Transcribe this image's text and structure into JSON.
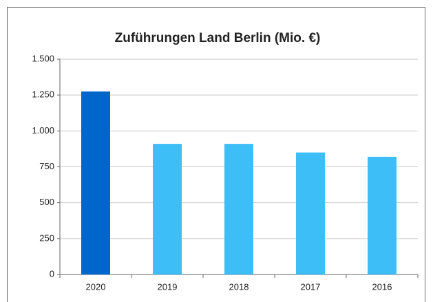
{
  "chart_data": {
    "type": "bar",
    "title": "Zuführungen Land Berlin (Mio. €)",
    "categories": [
      "2020",
      "2019",
      "2018",
      "2017",
      "2016"
    ],
    "values": [
      1275,
      910,
      910,
      850,
      820
    ],
    "colors": [
      "#0066cc",
      "#3dbef7",
      "#3dbef7",
      "#3dbef7",
      "#3dbef7"
    ],
    "ylim": [
      0,
      1500
    ],
    "yticks": [
      0,
      250,
      500,
      750,
      {
        "value": 1000,
        "label": "1.000"
      },
      {
        "value": 1250,
        "label": "1.250"
      },
      {
        "value": 1500,
        "label": "1.500"
      }
    ],
    "grid": true
  }
}
